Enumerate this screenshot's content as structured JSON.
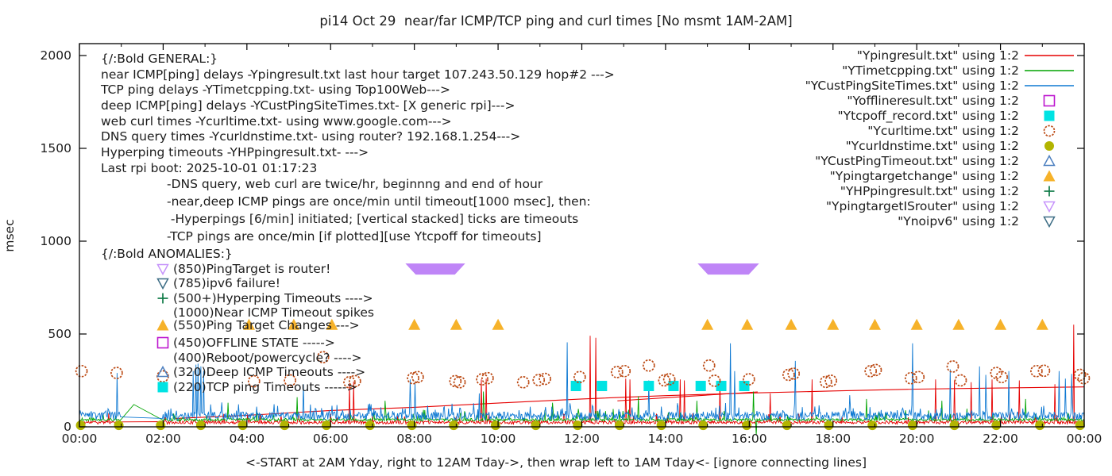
{
  "chart_data": {
    "type": "line",
    "title": "pi14 Oct 29  near/far ICMP/TCP ping and curl times [No msmt 1AM-2AM]",
    "ylabel": "msec",
    "caption": "<-START at 2AM Yday, right to 12AM Tday->, then wrap left to 1AM Tday<- [ignore connecting lines]",
    "xlim_hours": [
      0,
      24
    ],
    "ylim": [
      0,
      2000
    ],
    "grid": false,
    "x_ticks": [
      {
        "h": 0,
        "label": "00:00"
      },
      {
        "h": 2,
        "label": "02:00"
      },
      {
        "h": 4,
        "label": "04:00"
      },
      {
        "h": 6,
        "label": "06:00"
      },
      {
        "h": 8,
        "label": "08:00"
      },
      {
        "h": 10,
        "label": "10:00"
      },
      {
        "h": 12,
        "label": "12:00"
      },
      {
        "h": 14,
        "label": "14:00"
      },
      {
        "h": 16,
        "label": "16:00"
      },
      {
        "h": 18,
        "label": "18:00"
      },
      {
        "h": 20,
        "label": "20:00"
      },
      {
        "h": 22,
        "label": "22:00"
      },
      {
        "h": 24,
        "label": "00:00"
      }
    ],
    "y_ticks": [
      {
        "v": 0,
        "label": "0"
      },
      {
        "v": 500,
        "label": "500"
      },
      {
        "v": 1000,
        "label": "1000"
      },
      {
        "v": 1500,
        "label": "1500"
      },
      {
        "v": 2000,
        "label": "2000"
      }
    ],
    "legend_position": "top-right-inside",
    "legend": [
      {
        "label": "\"Ypingresult.txt\" using 1:2",
        "marker": "line",
        "color": "#e60000"
      },
      {
        "label": "\"YTimetcpping.txt\" using 1:2",
        "marker": "line",
        "color": "#00a400"
      },
      {
        "label": "\"YCustPingSiteTimes.txt\" using 1:2",
        "marker": "line",
        "color": "#0d78d2"
      },
      {
        "label": "\"Yofflineresult.txt\" using 1:2",
        "marker": "sq-open",
        "color": "#bd17cf"
      },
      {
        "label": "\"Ytcpoff_record.txt\" using 1:2",
        "marker": "sq-fill",
        "color": "#00e3e3"
      },
      {
        "label": "\"Ycurltime.txt\" using 1:2",
        "marker": "c-open",
        "color": "#bc4a14"
      },
      {
        "label": "\"Ycurldnstime.txt\" using 1:2",
        "marker": "c-fill",
        "color": "#b2b400"
      },
      {
        "label": "\"YCustPingTimeout.txt\" using 1:2",
        "marker": "tri-up-open",
        "color": "#4d80c0"
      },
      {
        "label": "\"Ypingtargetchange\" using 1:2",
        "marker": "tri-up-fill",
        "color": "#f6b22a"
      },
      {
        "label": "\"YHPpingresult.txt\" using 1:2",
        "marker": "plus",
        "color": "#0e7a46"
      },
      {
        "label": "\"YpingtargetISrouter\" using 1:2",
        "marker": "tri-down-open",
        "color": "#c693fb"
      },
      {
        "label": "\"Ynoipv6\" using 1:2",
        "marker": "tri-down-open",
        "color": "#3d6d85"
      }
    ],
    "general_lines": [
      "{/:Bold GENERAL:}",
      "near ICMP[ping] delays -Ypingresult.txt last hour target 107.243.50.129 hop#2 --->",
      "TCP ping delays -YTimetcpping.txt- using Top100Web--->",
      "deep ICMP[ping] delays -YCustPingSiteTimes.txt- [X generic rpi]--->",
      "web curl times -Ycurltime.txt- using www.google.com--->",
      "DNS query times -Ycurldnstime.txt- using router? 192.168.1.254--->",
      "Hyperping timeouts -YHPpingresult.txt- --->",
      "Last rpi boot: 2025-10-01 01:17:23"
    ],
    "note_lines": [
      "-DNS query, web curl are twice/hr, beginnng and end of hour",
      "-near,deep ICMP pings are once/min until timeout[1000 msec], then:",
      " -Hyperpings [6/min] initiated; [vertical stacked] ticks are timeouts",
      "-TCP pings are once/min [if plotted][use Ytcpoff for timeouts]"
    ],
    "anomalies_header": "{/:Bold ANOMALIES:}",
    "anomalies": [
      {
        "text": "(850)PingTarget is router!",
        "marker": "tri-down-open",
        "color": "#c693fb",
        "y": 339
      },
      {
        "text": "(785)ipv6 failure!",
        "marker": "tri-down-open",
        "color": "#3d6d85",
        "y": 357
      },
      {
        "text": "(500+)Hyperping Timeouts ---->",
        "marker": "plus",
        "color": "#0e7a46",
        "y": 376
      },
      {
        "text": "(1000)Near ICMP Timeout spikes",
        "marker": "none",
        "color": "",
        "y": 394
      },
      {
        "text": "(550)Ping Target Changes --->",
        "marker": "tri-up-fill",
        "color": "#f6b22a",
        "y": 410
      },
      {
        "text": "(450)OFFLINE STATE ----->",
        "marker": "sq-open",
        "color": "#bd17cf",
        "y": 432
      },
      {
        "text": "(400)Reboot/powercycle? ---->",
        "marker": "none",
        "color": "",
        "y": 451
      },
      {
        "text": "(320)Deep ICMP Timeouts ---->",
        "marker": "tri-up-open",
        "color": "#4d80c0",
        "y": 469
      },
      {
        "text": "(220)TCP ping Timeouts ----->",
        "marker": "sq-fill",
        "color": "#00e3e3",
        "y": 488
      }
    ],
    "series": {
      "near_icmp_red": {
        "name": "Ypingresult.txt",
        "color": "#e60000",
        "base": 24,
        "amp": 9,
        "seed": 11,
        "texture": 0.04,
        "spikes": [
          [
            6.45,
            235
          ],
          [
            6.55,
            245
          ],
          [
            9.6,
            255
          ],
          [
            9.72,
            260
          ],
          [
            12.2,
            490
          ],
          [
            12.33,
            480
          ],
          [
            13.05,
            260
          ],
          [
            13.15,
            255
          ],
          [
            14.35,
            255
          ],
          [
            14.45,
            250
          ],
          [
            15.3,
            250
          ],
          [
            16.5,
            180
          ],
          [
            17.5,
            255
          ],
          [
            20.45,
            255
          ],
          [
            20.9,
            250
          ],
          [
            21.3,
            240
          ],
          [
            21.8,
            255
          ],
          [
            22.45,
            250
          ],
          [
            23.3,
            230
          ],
          [
            23.75,
            550
          ]
        ]
      },
      "tcp_green": {
        "name": "YTimetcpping.txt",
        "color": "#00a400",
        "base": 38,
        "amp": 7,
        "seed": 22,
        "texture": 0.05,
        "spikes": [
          [
            1.3,
            120
          ],
          [
            3.55,
            130
          ],
          [
            5.2,
            160
          ],
          [
            7.3,
            140
          ],
          [
            9.65,
            190
          ],
          [
            11.3,
            130
          ],
          [
            13.35,
            165
          ],
          [
            14.75,
            140
          ],
          [
            16.1,
            190
          ],
          [
            16.17,
            -45
          ],
          [
            18.8,
            150
          ],
          [
            20.6,
            140
          ],
          [
            22.6,
            150
          ]
        ]
      },
      "deep_blue": {
        "name": "YCustPingSiteTimes.txt",
        "color": "#0d78d2",
        "base": 58,
        "amp": 22,
        "seed": 33,
        "texture": 0.13,
        "spikes": [
          [
            0.9,
            290
          ],
          [
            2.72,
            300
          ],
          [
            2.78,
            335
          ],
          [
            2.84,
            340
          ],
          [
            2.9,
            325
          ],
          [
            2.96,
            300
          ],
          [
            5.35,
            230
          ],
          [
            7.9,
            255
          ],
          [
            8.02,
            240
          ],
          [
            9.55,
            180
          ],
          [
            11.65,
            455
          ],
          [
            13.6,
            250
          ],
          [
            15.55,
            450
          ],
          [
            15.65,
            300
          ],
          [
            17.1,
            355
          ],
          [
            18.4,
            170
          ],
          [
            19.9,
            450
          ],
          [
            20.8,
            310
          ],
          [
            21.5,
            325
          ],
          [
            21.65,
            280
          ],
          [
            22.2,
            300
          ],
          [
            23.4,
            300
          ],
          [
            23.55,
            260
          ],
          [
            23.7,
            285
          ]
        ]
      },
      "gap_no_msmt": {
        "from_h": 1.0,
        "to_h": 1.97
      },
      "extra_connect_lines": [
        {
          "color": "#e60000",
          "pts": [
            [
              2.3,
              45
            ],
            [
              4,
              62
            ],
            [
              6,
              88
            ],
            [
              8,
              105
            ],
            [
              10,
              128
            ],
            [
              12,
              150
            ],
            [
              14,
              168
            ],
            [
              16,
              182
            ],
            [
              18,
              193
            ],
            [
              20,
              203
            ],
            [
              22,
              209
            ],
            [
              24,
              215
            ]
          ]
        },
        {
          "color": "#e60000",
          "pts": [
            [
              12.85,
              140
            ],
            [
              16.2,
              188
            ]
          ]
        }
      ],
      "curl_circles": {
        "name": "Ycurltime.txt",
        "color": "#bc4a14",
        "points": [
          [
            0.05,
            300
          ],
          [
            0.89,
            290
          ],
          [
            1.99,
            272
          ],
          [
            4.17,
            245
          ],
          [
            5.03,
            250
          ],
          [
            5.82,
            375
          ],
          [
            6.45,
            240
          ],
          [
            6.58,
            246
          ],
          [
            7.97,
            262
          ],
          [
            8.08,
            268
          ],
          [
            8.98,
            246
          ],
          [
            9.08,
            240
          ],
          [
            9.62,
            256
          ],
          [
            9.75,
            262
          ],
          [
            10.6,
            240
          ],
          [
            10.97,
            252
          ],
          [
            11.12,
            258
          ],
          [
            11.95,
            268
          ],
          [
            12.84,
            295
          ],
          [
            13.02,
            300
          ],
          [
            13.6,
            330
          ],
          [
            13.97,
            250
          ],
          [
            14.09,
            256
          ],
          [
            15.04,
            330
          ],
          [
            15.17,
            248
          ],
          [
            15.99,
            256
          ],
          [
            16.94,
            280
          ],
          [
            17.06,
            286
          ],
          [
            17.83,
            242
          ],
          [
            17.95,
            248
          ],
          [
            18.9,
            300
          ],
          [
            19.02,
            306
          ],
          [
            19.86,
            262
          ],
          [
            20.04,
            268
          ],
          [
            20.86,
            325
          ],
          [
            21.05,
            250
          ],
          [
            21.9,
            290
          ],
          [
            22.03,
            268
          ],
          [
            22.86,
            300
          ],
          [
            23.04,
            302
          ],
          [
            23.9,
            280
          ],
          [
            23.99,
            262
          ]
        ]
      },
      "dns_olive": {
        "name": "Ycurldnstime.txt",
        "color": "#b2b400",
        "value": 8,
        "hours": [
          0.03,
          0.94,
          1.94,
          2.9,
          3.9,
          4.9,
          5.9,
          6.94,
          7.94,
          8.94,
          9.94,
          10.9,
          11.9,
          12.9,
          13.9,
          14.9,
          15.94,
          16.9,
          17.9,
          18.94,
          19.9,
          20.9,
          21.9,
          22.94,
          23.9
        ]
      },
      "tcpoff_cyan": {
        "name": "Ytcpoff_record.txt",
        "color": "#00e3e3",
        "value": 220,
        "hours": [
          11.86,
          12.48,
          13.6,
          14.19,
          14.84,
          15.33,
          15.88
        ]
      },
      "targetchange_orange": {
        "name": "Ypingtargetchange",
        "color": "#f6b22a",
        "value": 550,
        "hours": [
          4.05,
          5.12,
          6.03,
          8.0,
          9.0,
          10.0,
          15.0,
          15.95,
          17.0,
          18.0,
          19.0,
          20.0,
          21.0,
          22.0,
          23.0
        ]
      },
      "isrouter_bands": {
        "name": "YpingtargetISrouter",
        "color": "#bf85f7",
        "value": 850,
        "bands": [
          {
            "h1": 7.9,
            "h2": 9.1
          },
          {
            "h1": 14.88,
            "h2": 16.12
          }
        ]
      }
    }
  }
}
